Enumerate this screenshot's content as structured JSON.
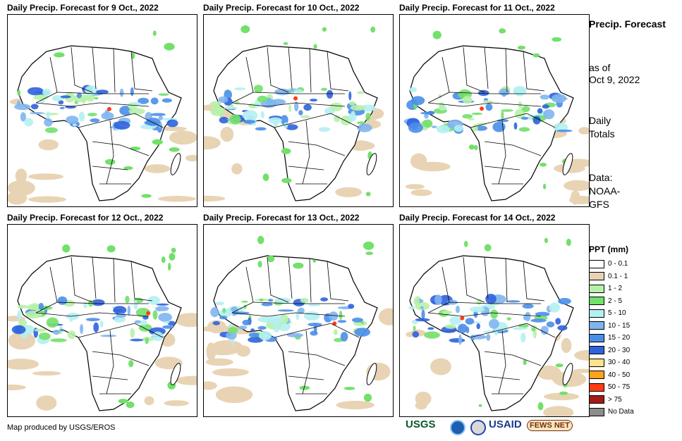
{
  "panels": [
    {
      "title": "Daily Precip. Forecast for 9 Oct., 2022"
    },
    {
      "title": "Daily Precip. Forecast for 10 Oct., 2022"
    },
    {
      "title": "Daily Precip. Forecast for 11 Oct., 2022"
    },
    {
      "title": "Daily Precip. Forecast for 12 Oct., 2022"
    },
    {
      "title": "Daily Precip. Forecast for 13 Oct., 2022"
    },
    {
      "title": "Daily Precip. Forecast for 14 Oct., 2022"
    }
  ],
  "side": {
    "title": "Precip. Forecast",
    "asof_label": "as of",
    "asof_date": "Oct 9, 2022",
    "daily_1": "Daily",
    "daily_2": "Totals",
    "data_1": "Data:",
    "data_2": "NOAA-",
    "data_3": "GFS"
  },
  "legend": {
    "title": "PPT (mm)",
    "items": [
      {
        "label": "0 - 0.1",
        "color": "#ffffff"
      },
      {
        "label": "0.1 - 1",
        "color": "#e8d4b4"
      },
      {
        "label": "1 - 2",
        "color": "#b7f1a9"
      },
      {
        "label": "2 - 5",
        "color": "#72e06a"
      },
      {
        "label": "5 - 10",
        "color": "#b4f0f2"
      },
      {
        "label": "10 - 15",
        "color": "#7fb5ef"
      },
      {
        "label": "15 - 20",
        "color": "#4a8ee8"
      },
      {
        "label": "20 - 30",
        "color": "#2f62dd"
      },
      {
        "label": "30 - 40",
        "color": "#ffe28a"
      },
      {
        "label": "40 - 50",
        "color": "#ffa31a"
      },
      {
        "label": "50 - 75",
        "color": "#ff3c14"
      },
      {
        "label": "> 75",
        "color": "#a31a1a"
      },
      {
        "label": "No Data",
        "color": "#8c8c8c"
      }
    ]
  },
  "credit": "Map produced by USGS/EROS",
  "logos": {
    "usgs": "USGS",
    "usaid": "USAID",
    "fews": "FEWS NET"
  }
}
